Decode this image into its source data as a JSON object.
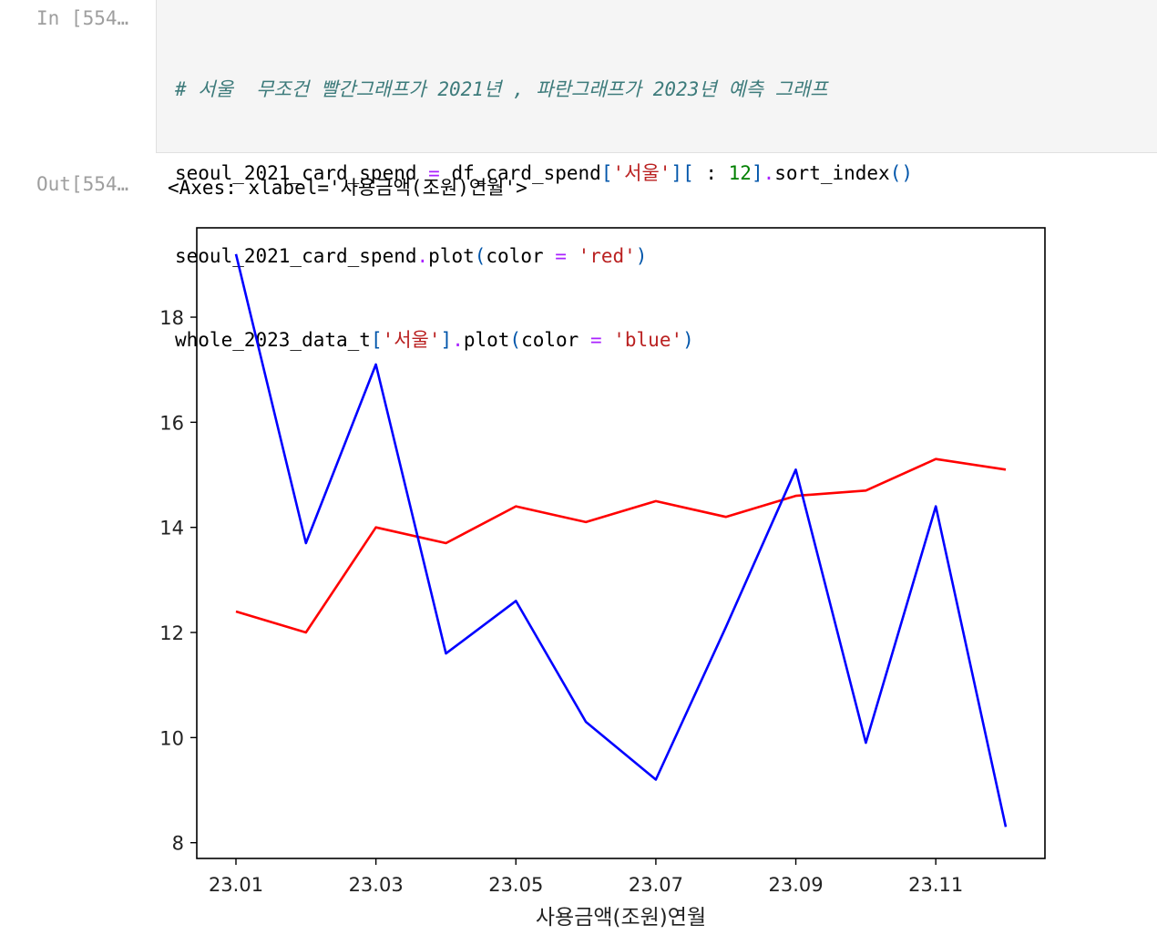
{
  "notebook": {
    "input_prompt": "In [554…",
    "output_prompt": "Out[554…",
    "code": {
      "line1_comment": "# 서울  무조건 빨간그래프가 2021년 , 파란그래프가 2023년 예측 그래프",
      "line2": {
        "var": "seoul_2021_card_spend ",
        "eq": "=",
        "obj": " df_card_spend",
        "br1": "[",
        "str1": "'서울'",
        "br2": "][",
        "colon": " : ",
        "num": "12",
        "br3": "]",
        "dot": ".",
        "method": "sort_index",
        "parens": "()"
      },
      "line3": {
        "obj": "seoul_2021_card_spend",
        "dot": ".",
        "method": "plot",
        "open": "(",
        "kw": "color ",
        "eq": "=",
        "sp": " ",
        "str": "'red'",
        "close": ")"
      },
      "line4": {
        "obj": "whole_2023_data_t",
        "br1": "[",
        "str1": "'서울'",
        "br2": "]",
        "dot": ".",
        "method": "plot",
        "open": "(",
        "kw": "color ",
        "eq": "=",
        "sp": " ",
        "str": "'blue'",
        "close": ")"
      }
    },
    "output_repr": "<Axes: xlabel='사용금액(조원)연월'>"
  },
  "chart_data": {
    "type": "line",
    "title": "",
    "xlabel": "사용금액(조원)연월",
    "ylabel": "",
    "x": [
      "23.01",
      "23.02",
      "23.03",
      "23.04",
      "23.05",
      "23.06",
      "23.07",
      "23.08",
      "23.09",
      "23.10",
      "23.11",
      "23.12"
    ],
    "x_tick_labels": [
      "23.01",
      "23.03",
      "23.05",
      "23.07",
      "23.09",
      "23.11"
    ],
    "y_ticks": [
      8,
      10,
      12,
      14,
      16,
      18
    ],
    "ylim": [
      7.7,
      19.7
    ],
    "grid": false,
    "series": [
      {
        "color": "#ff0000",
        "values": [
          12.4,
          12.0,
          14.0,
          13.7,
          14.4,
          14.1,
          14.5,
          14.2,
          14.6,
          14.7,
          15.3,
          15.1
        ]
      },
      {
        "color": "#0000ff",
        "values": [
          19.2,
          13.7,
          17.1,
          11.6,
          12.6,
          10.3,
          9.2,
          12.1,
          15.1,
          9.9,
          14.4,
          8.3
        ]
      }
    ]
  }
}
